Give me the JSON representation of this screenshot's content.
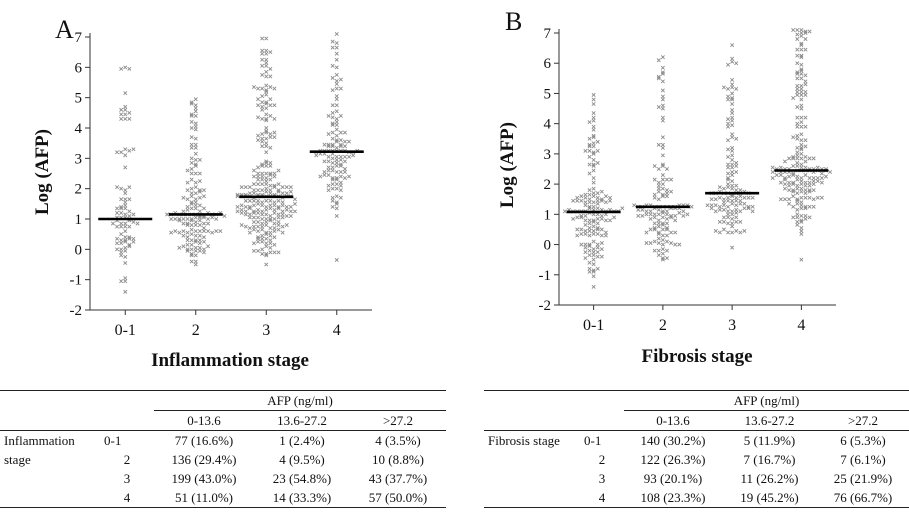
{
  "chart_data": [
    {
      "type": "scatter",
      "panel_label": "A",
      "xlabel": "Inflammation stage",
      "ylabel": "Log (AFP)",
      "categories": [
        "0-1",
        "2",
        "3",
        "4"
      ],
      "ylim": [
        -2,
        7
      ],
      "yticks": [
        "-2",
        "-1",
        "0",
        "1",
        "2",
        "3",
        "4",
        "5",
        "6",
        "7"
      ],
      "medians": [
        1.0,
        1.15,
        1.73,
        3.22
      ],
      "groups": [
        {
          "category": "0-1",
          "n": 82,
          "min": -1.4,
          "max": 6.0,
          "median": 1.0
        },
        {
          "category": "2",
          "n": 150,
          "min": -0.5,
          "max": 4.95,
          "median": 1.15
        },
        {
          "category": "3",
          "n": 265,
          "min": -0.5,
          "max": 6.95,
          "median": 1.73
        },
        {
          "category": "4",
          "n": 122,
          "min": -0.35,
          "max": 7.1,
          "median": 3.22
        }
      ]
    },
    {
      "type": "scatter",
      "panel_label": "B",
      "xlabel": "Fibrosis stage",
      "ylabel": "Log (AFP)",
      "categories": [
        "0-1",
        "2",
        "3",
        "4"
      ],
      "ylim": [
        -2,
        7
      ],
      "yticks": [
        "-2",
        "-1",
        "0",
        "1",
        "2",
        "3",
        "4",
        "5",
        "6",
        "7"
      ],
      "medians": [
        1.08,
        1.25,
        1.7,
        2.45
      ],
      "groups": [
        {
          "category": "0-1",
          "n": 151,
          "min": -1.4,
          "max": 4.95,
          "median": 1.08
        },
        {
          "category": "2",
          "n": 136,
          "min": -0.5,
          "max": 6.2,
          "median": 1.25
        },
        {
          "category": "3",
          "n": 129,
          "min": -0.1,
          "max": 6.6,
          "median": 1.7
        },
        {
          "category": "4",
          "n": 203,
          "min": -0.5,
          "max": 7.1,
          "median": 2.45
        }
      ]
    }
  ],
  "tables": [
    {
      "header": "AFP (ng/ml)",
      "columns": [
        "0-13.6",
        "13.6-27.2",
        ">27.2"
      ],
      "row_label": [
        "Inflammation",
        "stage"
      ],
      "rows": [
        {
          "stage": "0-1",
          "cells": [
            "77 (16.6%)",
            "1 (2.4%)",
            "4 (3.5%)"
          ]
        },
        {
          "stage": "2",
          "cells": [
            "136 (29.4%)",
            "4 (9.5%)",
            "10 (8.8%)"
          ]
        },
        {
          "stage": "3",
          "cells": [
            "199 (43.0%)",
            "23 (54.8%)",
            "43 (37.7%)"
          ]
        },
        {
          "stage": "4",
          "cells": [
            "51 (11.0%)",
            "14 (33.3%)",
            "57 (50.0%)"
          ]
        }
      ]
    },
    {
      "header": "AFP (ng/ml)",
      "columns": [
        "0-13.6",
        "13.6-27.2",
        ">27.2"
      ],
      "row_label": [
        "Fibrosis stage"
      ],
      "rows": [
        {
          "stage": "0-1",
          "cells": [
            "140 (30.2%)",
            "5 (11.9%)",
            "6 (5.3%)"
          ]
        },
        {
          "stage": "2",
          "cells": [
            "122 (26.3%)",
            "7 (16.7%)",
            "7 (6.1%)"
          ]
        },
        {
          "stage": "3",
          "cells": [
            "93 (20.1%)",
            "11 (26.2%)",
            "25 (21.9%)"
          ]
        },
        {
          "stage": "4",
          "cells": [
            "108 (23.3%)",
            "19 (45.2%)",
            "76 (66.7%)"
          ]
        }
      ]
    }
  ],
  "colors": {
    "marker": "#8c8c8c",
    "median_line": "#000000",
    "axis": "#333333"
  }
}
